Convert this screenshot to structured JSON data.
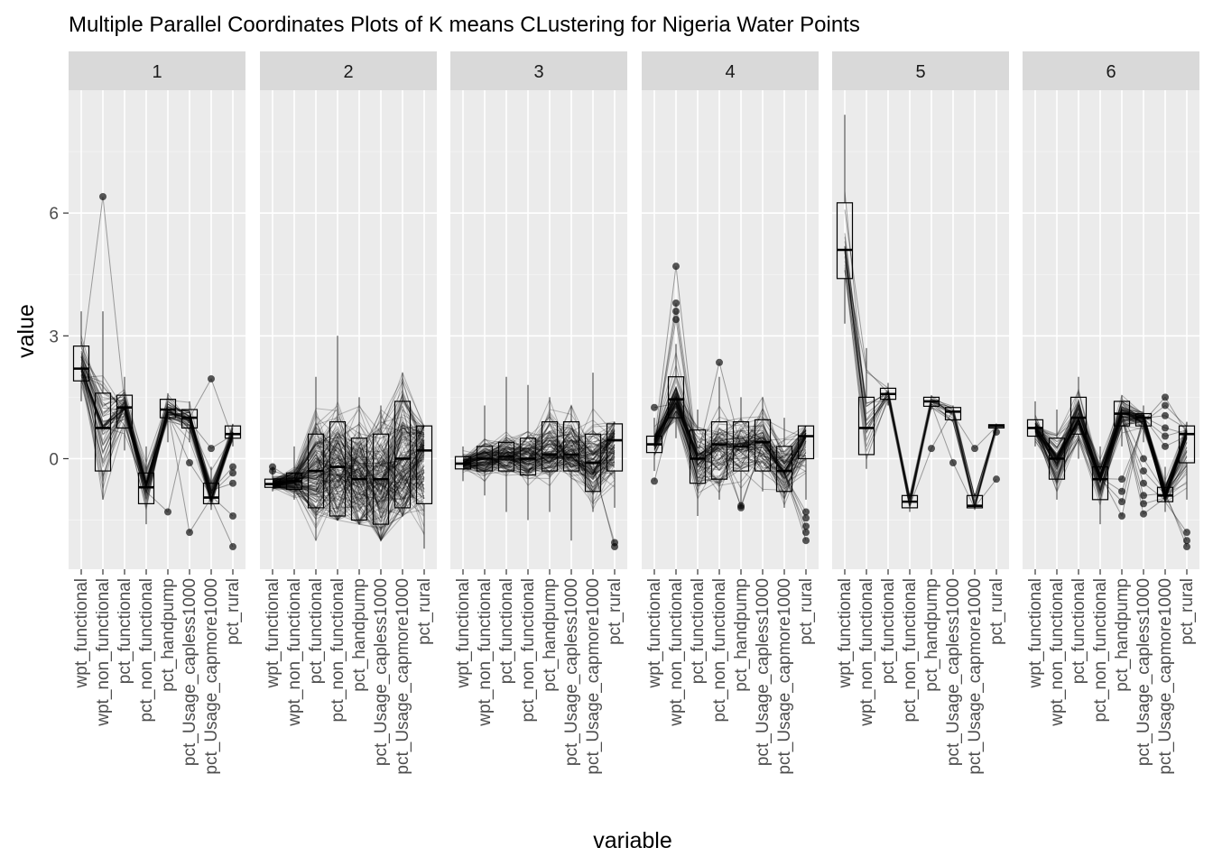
{
  "chart_data": {
    "type": "parallel-coordinates-boxplot-facets",
    "title": "Multiple Parallel Coordinates Plots of K means CLustering for Nigeria Water Points",
    "xlabel": "variable",
    "ylabel": "value",
    "yticks": [
      0,
      3,
      6
    ],
    "ylim": [
      -2.7,
      9.0
    ],
    "grid": true,
    "variables": [
      "wpt_functional",
      "wpt_non_functional",
      "pct_functional",
      "pct_non_functional",
      "pct_handpump",
      "pct_Usage_capless1000",
      "pct_Usage_capmore1000",
      "pct_rural"
    ],
    "facets": [
      {
        "label": "1",
        "line_count": 45,
        "line_opacity": 0.3,
        "boxes": [
          {
            "q1": 1.9,
            "median": 2.2,
            "q3": 2.75,
            "lo": 1.4,
            "hi": 3.6
          },
          {
            "q1": -0.3,
            "median": 0.75,
            "q3": 1.6,
            "lo": -1.0,
            "hi": 3.6
          },
          {
            "q1": 0.75,
            "median": 1.25,
            "q3": 1.55,
            "lo": 0.2,
            "hi": 2.0
          },
          {
            "q1": -1.1,
            "median": -0.7,
            "q3": -0.35,
            "lo": -1.6,
            "hi": 0.3
          },
          {
            "q1": 1.0,
            "median": 1.2,
            "q3": 1.45,
            "lo": 0.4,
            "hi": 1.6
          },
          {
            "q1": 0.75,
            "median": 1.0,
            "q3": 1.2,
            "lo": 0.4,
            "hi": 1.4
          },
          {
            "q1": -1.1,
            "median": -0.95,
            "q3": -0.6,
            "lo": -1.25,
            "hi": -0.2
          },
          {
            "q1": 0.5,
            "median": 0.6,
            "q3": 0.8,
            "lo": 0.3,
            "hi": 0.85
          }
        ],
        "outliers": [
          [
            1,
            6.4
          ],
          [
            4,
            -1.3
          ],
          [
            5,
            -1.8
          ],
          [
            5,
            -0.1
          ],
          [
            6,
            1.95
          ],
          [
            6,
            0.25
          ],
          [
            7,
            -0.2
          ],
          [
            7,
            -0.35
          ],
          [
            7,
            -0.6
          ],
          [
            7,
            -1.4
          ],
          [
            7,
            -2.15
          ]
        ]
      },
      {
        "label": "2",
        "line_count": 160,
        "line_opacity": 0.25,
        "boxes": [
          {
            "q1": -0.7,
            "median": -0.62,
            "q3": -0.5,
            "lo": -0.8,
            "hi": -0.2
          },
          {
            "q1": -0.75,
            "median": -0.55,
            "q3": -0.35,
            "lo": -1.0,
            "hi": 0.3
          },
          {
            "q1": -1.2,
            "median": -0.3,
            "q3": 0.6,
            "lo": -2.0,
            "hi": 2.0
          },
          {
            "q1": -1.4,
            "median": -0.2,
            "q3": 0.9,
            "lo": -1.5,
            "hi": 3.0
          },
          {
            "q1": -1.5,
            "median": -0.5,
            "q3": 0.5,
            "lo": -1.6,
            "hi": 1.5
          },
          {
            "q1": -1.6,
            "median": -0.5,
            "q3": 0.6,
            "lo": -2.0,
            "hi": 1.3
          },
          {
            "q1": -1.2,
            "median": 0.0,
            "q3": 1.4,
            "lo": -1.4,
            "hi": 2.1
          },
          {
            "q1": -1.1,
            "median": 0.2,
            "q3": 0.8,
            "lo": -2.2,
            "hi": 0.8
          }
        ],
        "outliers": [
          [
            0,
            -0.2
          ],
          [
            0,
            -0.3
          ]
        ]
      },
      {
        "label": "3",
        "line_count": 130,
        "line_opacity": 0.25,
        "boxes": [
          {
            "q1": -0.25,
            "median": -0.12,
            "q3": 0.05,
            "lo": -0.55,
            "hi": 0.3
          },
          {
            "q1": -0.3,
            "median": 0.0,
            "q3": 0.3,
            "lo": -0.9,
            "hi": 1.3
          },
          {
            "q1": -0.3,
            "median": 0.05,
            "q3": 0.4,
            "lo": -1.3,
            "hi": 2.0
          },
          {
            "q1": -0.4,
            "median": 0.0,
            "q3": 0.5,
            "lo": -1.5,
            "hi": 1.8
          },
          {
            "q1": -0.3,
            "median": 0.1,
            "q3": 0.9,
            "lo": -1.3,
            "hi": 1.5
          },
          {
            "q1": -0.3,
            "median": 0.1,
            "q3": 0.9,
            "lo": -2.0,
            "hi": 1.3
          },
          {
            "q1": -0.8,
            "median": -0.1,
            "q3": 0.6,
            "lo": -1.3,
            "hi": 2.1
          },
          {
            "q1": -0.3,
            "median": 0.45,
            "q3": 0.85,
            "lo": -1.2,
            "hi": 0.9
          }
        ],
        "outliers": [
          [
            7,
            -2.05
          ],
          [
            7,
            -2.15
          ]
        ]
      },
      {
        "label": "4",
        "line_count": 75,
        "line_opacity": 0.28,
        "boxes": [
          {
            "q1": 0.15,
            "median": 0.35,
            "q3": 0.55,
            "lo": -0.3,
            "hi": 1.0
          },
          {
            "q1": 1.0,
            "median": 1.45,
            "q3": 2.0,
            "lo": 0.5,
            "hi": 2.8
          },
          {
            "q1": -0.6,
            "median": 0.0,
            "q3": 0.7,
            "lo": -1.4,
            "hi": 1.2
          },
          {
            "q1": -0.5,
            "median": 0.35,
            "q3": 0.9,
            "lo": -1.0,
            "hi": 2.0
          },
          {
            "q1": -0.3,
            "median": 0.3,
            "q3": 0.9,
            "lo": -1.1,
            "hi": 1.5
          },
          {
            "q1": -0.3,
            "median": 0.4,
            "q3": 0.95,
            "lo": -0.8,
            "hi": 1.5
          },
          {
            "q1": -0.8,
            "median": -0.3,
            "q3": 0.3,
            "lo": -1.2,
            "hi": 1.0
          },
          {
            "q1": 0.0,
            "median": 0.55,
            "q3": 0.8,
            "lo": -1.0,
            "hi": 0.8
          }
        ],
        "outliers": [
          [
            0,
            1.25
          ],
          [
            0,
            -0.55
          ],
          [
            1,
            3.4
          ],
          [
            1,
            3.6
          ],
          [
            1,
            3.8
          ],
          [
            1,
            4.7
          ],
          [
            3,
            2.35
          ],
          [
            4,
            -1.15
          ],
          [
            4,
            -1.2
          ],
          [
            7,
            -1.3
          ],
          [
            7,
            -1.45
          ],
          [
            7,
            -1.65
          ],
          [
            7,
            -1.8
          ],
          [
            7,
            -2.0
          ]
        ]
      },
      {
        "label": "5",
        "line_count": 14,
        "line_opacity": 0.35,
        "boxes": [
          {
            "q1": 4.4,
            "median": 5.1,
            "q3": 6.25,
            "lo": 3.3,
            "hi": 8.4
          },
          {
            "q1": 0.1,
            "median": 0.75,
            "q3": 1.5,
            "lo": -0.25,
            "hi": 2.7
          },
          {
            "q1": 1.45,
            "median": 1.58,
            "q3": 1.72,
            "lo": 1.3,
            "hi": 1.85
          },
          {
            "q1": -1.2,
            "median": -1.05,
            "q3": -0.9,
            "lo": -1.3,
            "hi": -0.85
          },
          {
            "q1": 1.28,
            "median": 1.4,
            "q3": 1.5,
            "lo": 1.2,
            "hi": 1.55
          },
          {
            "q1": 0.95,
            "median": 1.15,
            "q3": 1.25,
            "lo": 0.9,
            "hi": 1.3
          },
          {
            "q1": -1.2,
            "median": -1.15,
            "q3": -0.9,
            "lo": -1.25,
            "hi": -0.85
          },
          {
            "q1": 0.75,
            "median": 0.8,
            "q3": 0.83,
            "lo": 0.7,
            "hi": 0.85
          }
        ],
        "outliers": [
          [
            4,
            0.25
          ],
          [
            5,
            -0.1
          ],
          [
            6,
            0.25
          ],
          [
            7,
            0.65
          ],
          [
            7,
            -0.5
          ]
        ]
      },
      {
        "label": "6",
        "line_count": 70,
        "line_opacity": 0.28,
        "boxes": [
          {
            "q1": 0.55,
            "median": 0.75,
            "q3": 0.95,
            "lo": 0.3,
            "hi": 1.4
          },
          {
            "q1": -0.5,
            "median": 0.0,
            "q3": 0.5,
            "lo": -1.0,
            "hi": 1.2
          },
          {
            "q1": 0.6,
            "median": 1.0,
            "q3": 1.5,
            "lo": 0.0,
            "hi": 2.0
          },
          {
            "q1": -1.0,
            "median": -0.5,
            "q3": -0.2,
            "lo": -1.6,
            "hi": 0.3
          },
          {
            "q1": 0.8,
            "median": 1.1,
            "q3": 1.4,
            "lo": 0.3,
            "hi": 1.55
          },
          {
            "q1": 0.8,
            "median": 1.0,
            "q3": 1.1,
            "lo": 0.4,
            "hi": 1.3
          },
          {
            "q1": -1.05,
            "median": -0.9,
            "q3": -0.7,
            "lo": -1.3,
            "hi": -0.2
          },
          {
            "q1": -0.1,
            "median": 0.6,
            "q3": 0.8,
            "lo": -1.0,
            "hi": 0.9
          }
        ],
        "outliers": [
          [
            4,
            -0.5
          ],
          [
            4,
            -0.8
          ],
          [
            4,
            -1.05
          ],
          [
            4,
            -1.4
          ],
          [
            5,
            0.0
          ],
          [
            5,
            -0.3
          ],
          [
            5,
            -0.6
          ],
          [
            5,
            -0.9
          ],
          [
            5,
            -1.1
          ],
          [
            5,
            -1.35
          ],
          [
            6,
            1.5
          ],
          [
            6,
            1.3
          ],
          [
            6,
            1.05
          ],
          [
            6,
            0.75
          ],
          [
            6,
            0.55
          ],
          [
            6,
            0.3
          ],
          [
            7,
            -1.8
          ],
          [
            7,
            -2.0
          ],
          [
            7,
            -2.15
          ]
        ]
      }
    ]
  }
}
